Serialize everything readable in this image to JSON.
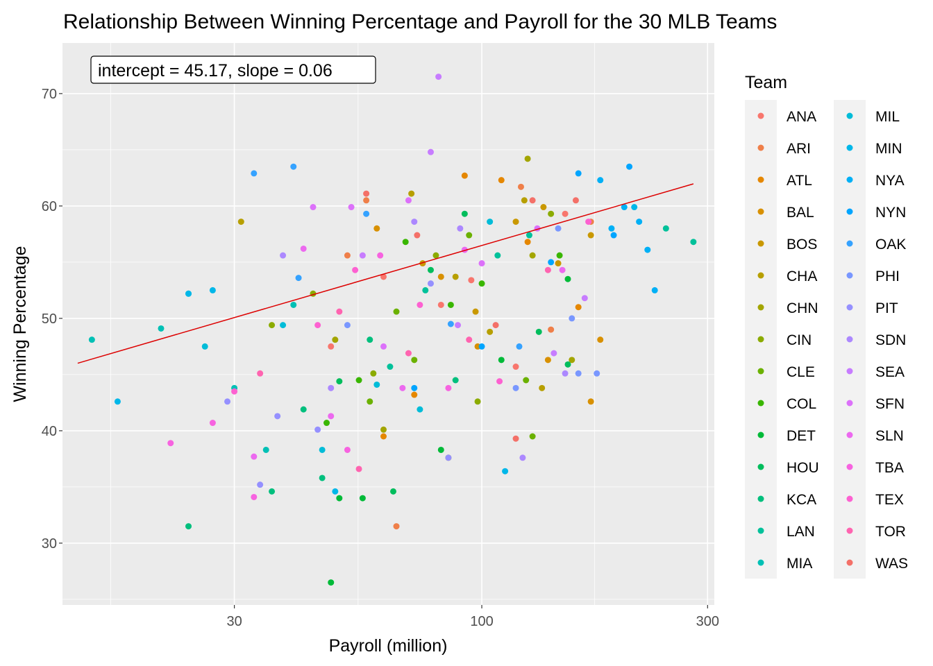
{
  "chart_data": {
    "type": "scatter",
    "title": "Relationship Between Winning Percentage and Payroll for the 30 MLB Teams",
    "xlabel": "Payroll (million)",
    "ylabel": "Winning Percentage",
    "x_scale": "log10",
    "xlim": [
      13,
      310
    ],
    "ylim": [
      24.5,
      74.5
    ],
    "x_ticks": [
      30,
      100,
      300
    ],
    "y_ticks": [
      30,
      40,
      50,
      60,
      70
    ],
    "grid": true,
    "legend_title": "Team",
    "legend_position": "right",
    "annotation": "intercept = 45.17, slope = 0.06",
    "fit_line": {
      "intercept": 45.17,
      "slope": 0.06,
      "x_range": [
        14,
        280
      ],
      "color": "#dd0000"
    },
    "series": [
      {
        "name": "ANA",
        "color": "#F8766D",
        "points": [
          [
            95,
            53.4
          ],
          [
            150,
            59.3
          ],
          [
            62,
            53.7
          ],
          [
            118,
            45.7
          ],
          [
            82,
            51.2
          ],
          [
            48,
            47.5
          ]
        ]
      },
      {
        "name": "ARI",
        "color": "#EF7F49",
        "points": [
          [
            66,
            31.5
          ],
          [
            140,
            49
          ],
          [
            52,
            55.6
          ],
          [
            121,
            61.7
          ],
          [
            170,
            58.6
          ],
          [
            57,
            60.5
          ]
        ]
      },
      {
        "name": "ATL",
        "color": "#E58700",
        "points": [
          [
            92,
            62.7
          ],
          [
            110,
            62.3
          ],
          [
            125,
            56.8
          ],
          [
            72,
            43.2
          ],
          [
            62,
            39.5
          ],
          [
            160,
            51
          ]
        ]
      },
      {
        "name": "BAL",
        "color": "#D89000",
        "points": [
          [
            60,
            58.0
          ],
          [
            82,
            53.7
          ],
          [
            138,
            46.3
          ],
          [
            170,
            42.6
          ],
          [
            178,
            48.1
          ],
          [
            98,
            47.5
          ]
        ]
      },
      {
        "name": "BOS",
        "color": "#C99800",
        "points": [
          [
            170,
            57.4
          ],
          [
            135,
            59.9
          ],
          [
            118,
            58.6
          ],
          [
            97,
            50.6
          ],
          [
            75,
            54.9
          ],
          [
            145,
            54.9
          ]
        ]
      },
      {
        "name": "CHA",
        "color": "#B79F00",
        "points": [
          [
            31,
            58.6
          ],
          [
            88,
            53.7
          ],
          [
            104,
            48.8
          ],
          [
            123,
            60.5
          ],
          [
            71,
            61.1
          ],
          [
            134,
            43.8
          ]
        ]
      },
      {
        "name": "CHN",
        "color": "#A3A500",
        "points": [
          [
            85,
            37.6
          ],
          [
            125,
            64.2
          ],
          [
            128,
            55.6
          ],
          [
            155,
            46.3
          ],
          [
            49,
            48.1
          ],
          [
            62,
            40.1
          ]
        ]
      },
      {
        "name": "CIN",
        "color": "#8BAB00",
        "points": [
          [
            36,
            49.4
          ],
          [
            44,
            52.2
          ],
          [
            59,
            45.1
          ],
          [
            98,
            42.6
          ],
          [
            140,
            59.3
          ],
          [
            80,
            55.6
          ]
        ]
      },
      {
        "name": "CLE",
        "color": "#6BB100",
        "points": [
          [
            58,
            42.6
          ],
          [
            72,
            46.3
          ],
          [
            94,
            57.4
          ],
          [
            128,
            39.5
          ],
          [
            66,
            50.6
          ],
          [
            124,
            44.5
          ]
        ]
      },
      {
        "name": "COL",
        "color": "#39B600",
        "points": [
          [
            47,
            40.7
          ],
          [
            69,
            56.8
          ],
          [
            100,
            53.1
          ],
          [
            55,
            44.5
          ],
          [
            146,
            55.6
          ],
          [
            86,
            51.2
          ]
        ]
      },
      {
        "name": "DET",
        "color": "#00BA38",
        "points": [
          [
            48,
            26.5
          ],
          [
            50,
            34.0
          ],
          [
            56,
            34.0
          ],
          [
            82,
            38.3
          ],
          [
            152,
            53.5
          ],
          [
            110,
            46.3
          ]
        ]
      },
      {
        "name": "HOU",
        "color": "#00BD5C",
        "points": [
          [
            50,
            44.4
          ],
          [
            65,
            34.6
          ],
          [
            78,
            54.3
          ],
          [
            152,
            45.9
          ],
          [
            92,
            59.3
          ],
          [
            132,
            48.8
          ]
        ]
      },
      {
        "name": "KCA",
        "color": "#00BF7D",
        "points": [
          [
            24,
            31.5
          ],
          [
            36,
            34.6
          ],
          [
            46,
            35.8
          ],
          [
            58,
            48.1
          ],
          [
            42,
            41.9
          ],
          [
            88,
            44.5
          ]
        ]
      },
      {
        "name": "LAN",
        "color": "#00C19A",
        "points": [
          [
            245,
            58.0
          ],
          [
            280,
            56.8
          ],
          [
            108,
            55.6
          ],
          [
            126,
            57.4
          ],
          [
            76,
            52.5
          ],
          [
            64,
            45.7
          ]
        ]
      },
      {
        "name": "MIA",
        "color": "#00C0B5",
        "points": [
          [
            15,
            48.1
          ],
          [
            21,
            49.1
          ],
          [
            24,
            52.2
          ],
          [
            35,
            38.3
          ],
          [
            40,
            51.2
          ],
          [
            30,
            43.8
          ]
        ]
      },
      {
        "name": "MIL",
        "color": "#00BCD8",
        "points": [
          [
            26,
            47.5
          ],
          [
            38,
            49.4
          ],
          [
            46,
            38.3
          ],
          [
            60,
            44.1
          ],
          [
            74,
            41.9
          ],
          [
            104,
            58.6
          ]
        ]
      },
      {
        "name": "MIN",
        "color": "#00B7E9",
        "points": [
          [
            17,
            42.6
          ],
          [
            24,
            52.2
          ],
          [
            27,
            52.5
          ],
          [
            49,
            34.6
          ],
          [
            112,
            36.4
          ],
          [
            210,
            59.9
          ]
        ]
      },
      {
        "name": "NYA",
        "color": "#00B0F6",
        "points": [
          [
            200,
            59.9
          ],
          [
            215,
            58.6
          ],
          [
            224,
            56.1
          ],
          [
            232,
            52.5
          ],
          [
            178,
            62.3
          ],
          [
            188,
            58.0
          ]
        ]
      },
      {
        "name": "NYN",
        "color": "#00A5FF",
        "points": [
          [
            190,
            57.4
          ],
          [
            205,
            63.5
          ],
          [
            160,
            62.9
          ],
          [
            140,
            55.0
          ],
          [
            100,
            47.5
          ],
          [
            72,
            43.8
          ]
        ]
      },
      {
        "name": "OAK",
        "color": "#35A2FF",
        "points": [
          [
            33,
            62.9
          ],
          [
            40,
            63.5
          ],
          [
            41,
            53.6
          ],
          [
            57,
            59.3
          ],
          [
            86,
            49.5
          ],
          [
            120,
            47.5
          ]
        ]
      },
      {
        "name": "PHI",
        "color": "#7997FF",
        "points": [
          [
            145,
            58.0
          ],
          [
            160,
            45.1
          ],
          [
            175,
            45.1
          ],
          [
            155,
            50.0
          ],
          [
            118,
            43.8
          ],
          [
            52,
            49.4
          ]
        ]
      },
      {
        "name": "PIT",
        "color": "#9590FF",
        "points": [
          [
            29,
            42.6
          ],
          [
            34,
            35.2
          ],
          [
            37,
            41.3
          ],
          [
            45,
            40.1
          ],
          [
            85,
            37.6
          ],
          [
            78,
            53.1
          ]
        ]
      },
      {
        "name": "SDN",
        "color": "#AC88FF",
        "points": [
          [
            38,
            55.6
          ],
          [
            48,
            43.8
          ],
          [
            72,
            58.6
          ],
          [
            90,
            58.0
          ],
          [
            122,
            37.6
          ],
          [
            150,
            45.1
          ]
        ]
      },
      {
        "name": "SEA",
        "color": "#C77CFF",
        "points": [
          [
            81,
            71.5
          ],
          [
            78,
            64.8
          ],
          [
            56,
            55.6
          ],
          [
            89,
            49.4
          ],
          [
            142,
            46.9
          ],
          [
            165,
            51.8
          ]
        ]
      },
      {
        "name": "SFN",
        "color": "#DC71FA",
        "points": [
          [
            44,
            59.9
          ],
          [
            53,
            59.9
          ],
          [
            70,
            60.5
          ],
          [
            100,
            54.9
          ],
          [
            131,
            58.0
          ],
          [
            62,
            47.5
          ]
        ]
      },
      {
        "name": "SLN",
        "color": "#EC69EF",
        "points": [
          [
            33,
            37.7
          ],
          [
            42,
            56.2
          ],
          [
            48,
            41.3
          ],
          [
            68,
            43.8
          ],
          [
            92,
            56.1
          ],
          [
            148,
            54.3
          ]
        ]
      },
      {
        "name": "TBA",
        "color": "#F763E0",
        "points": [
          [
            22,
            38.9
          ],
          [
            27,
            40.7
          ],
          [
            33,
            34.1
          ],
          [
            52,
            38.3
          ],
          [
            61,
            55.6
          ],
          [
            85,
            43.8
          ]
        ]
      },
      {
        "name": "TEX",
        "color": "#FD61D1",
        "points": [
          [
            30,
            43.5
          ],
          [
            45,
            49.4
          ],
          [
            54,
            54.3
          ],
          [
            74,
            51.2
          ],
          [
            109,
            44.4
          ],
          [
            168,
            58.6
          ]
        ]
      },
      {
        "name": "TOR",
        "color": "#FF64B0",
        "points": [
          [
            34,
            45.1
          ],
          [
            50,
            50.6
          ],
          [
            55,
            36.6
          ],
          [
            70,
            46.9
          ],
          [
            94,
            48.1
          ],
          [
            138,
            54.3
          ]
        ]
      },
      {
        "name": "WAS",
        "color": "#F47068",
        "points": [
          [
            57,
            61.1
          ],
          [
            73,
            57.4
          ],
          [
            107,
            49.4
          ],
          [
            118,
            39.3
          ],
          [
            128,
            60.5
          ],
          [
            158,
            60.5
          ]
        ]
      }
    ]
  }
}
